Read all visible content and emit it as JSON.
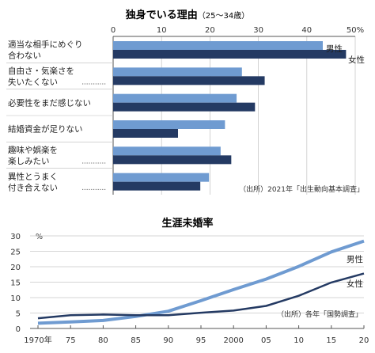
{
  "chart_data": [
    {
      "type": "bar",
      "orientation": "horizontal",
      "title": "独身でいる理由",
      "title_note": "（25～34歳）",
      "categories": [
        [
          "適当な相手にめぐり",
          "合わない"
        ],
        [
          "自由さ・気楽さを",
          "失いたくない"
        ],
        [
          "必要性をまだ感じない"
        ],
        [
          "結婚資金が足りない"
        ],
        [
          "趣味や娯楽を",
          "楽しみたい"
        ],
        [
          "異性とうまく",
          "付き合えない"
        ]
      ],
      "series": [
        {
          "name": "男性",
          "color": "#6f9bd1",
          "values": [
            43.3,
            26.6,
            25.5,
            23.1,
            22.2,
            19.8
          ]
        },
        {
          "name": "女性",
          "color": "#243a63",
          "values": [
            48.1,
            31.3,
            29.3,
            13.4,
            24.4,
            18.0
          ]
        }
      ],
      "xlim": [
        0,
        50
      ],
      "x_ticks": [
        "0",
        "10",
        "20",
        "30",
        "40",
        "50%"
      ],
      "grid": true,
      "legend_position": "top-right",
      "source": "（出所）2021年「出生動向基本調査」"
    },
    {
      "type": "line",
      "title": "生涯未婚率",
      "y_unit": "%",
      "x": [
        1970,
        1975,
        1980,
        1985,
        1990,
        1995,
        2000,
        2005,
        2010,
        2015,
        2020
      ],
      "x_tick_labels": [
        "1970年",
        "75",
        "80",
        "85",
        "90",
        "95",
        "2000",
        "05",
        "10",
        "15",
        "20"
      ],
      "series": [
        {
          "name": "男性",
          "color": "#6f9bd1",
          "values": [
            1.7,
            2.1,
            2.6,
            3.9,
            5.6,
            9.0,
            12.6,
            16.0,
            20.1,
            24.8,
            28.3
          ]
        },
        {
          "name": "女性",
          "color": "#243a63",
          "values": [
            3.3,
            4.3,
            4.5,
            4.3,
            4.3,
            5.1,
            5.8,
            7.3,
            10.6,
            14.9,
            17.8
          ]
        }
      ],
      "ylim": [
        0,
        30
      ],
      "y_ticks": [
        "0",
        "5",
        "10",
        "15",
        "20",
        "25",
        "30"
      ],
      "grid": true,
      "source": "（出所）各年「国勢調査」"
    }
  ]
}
